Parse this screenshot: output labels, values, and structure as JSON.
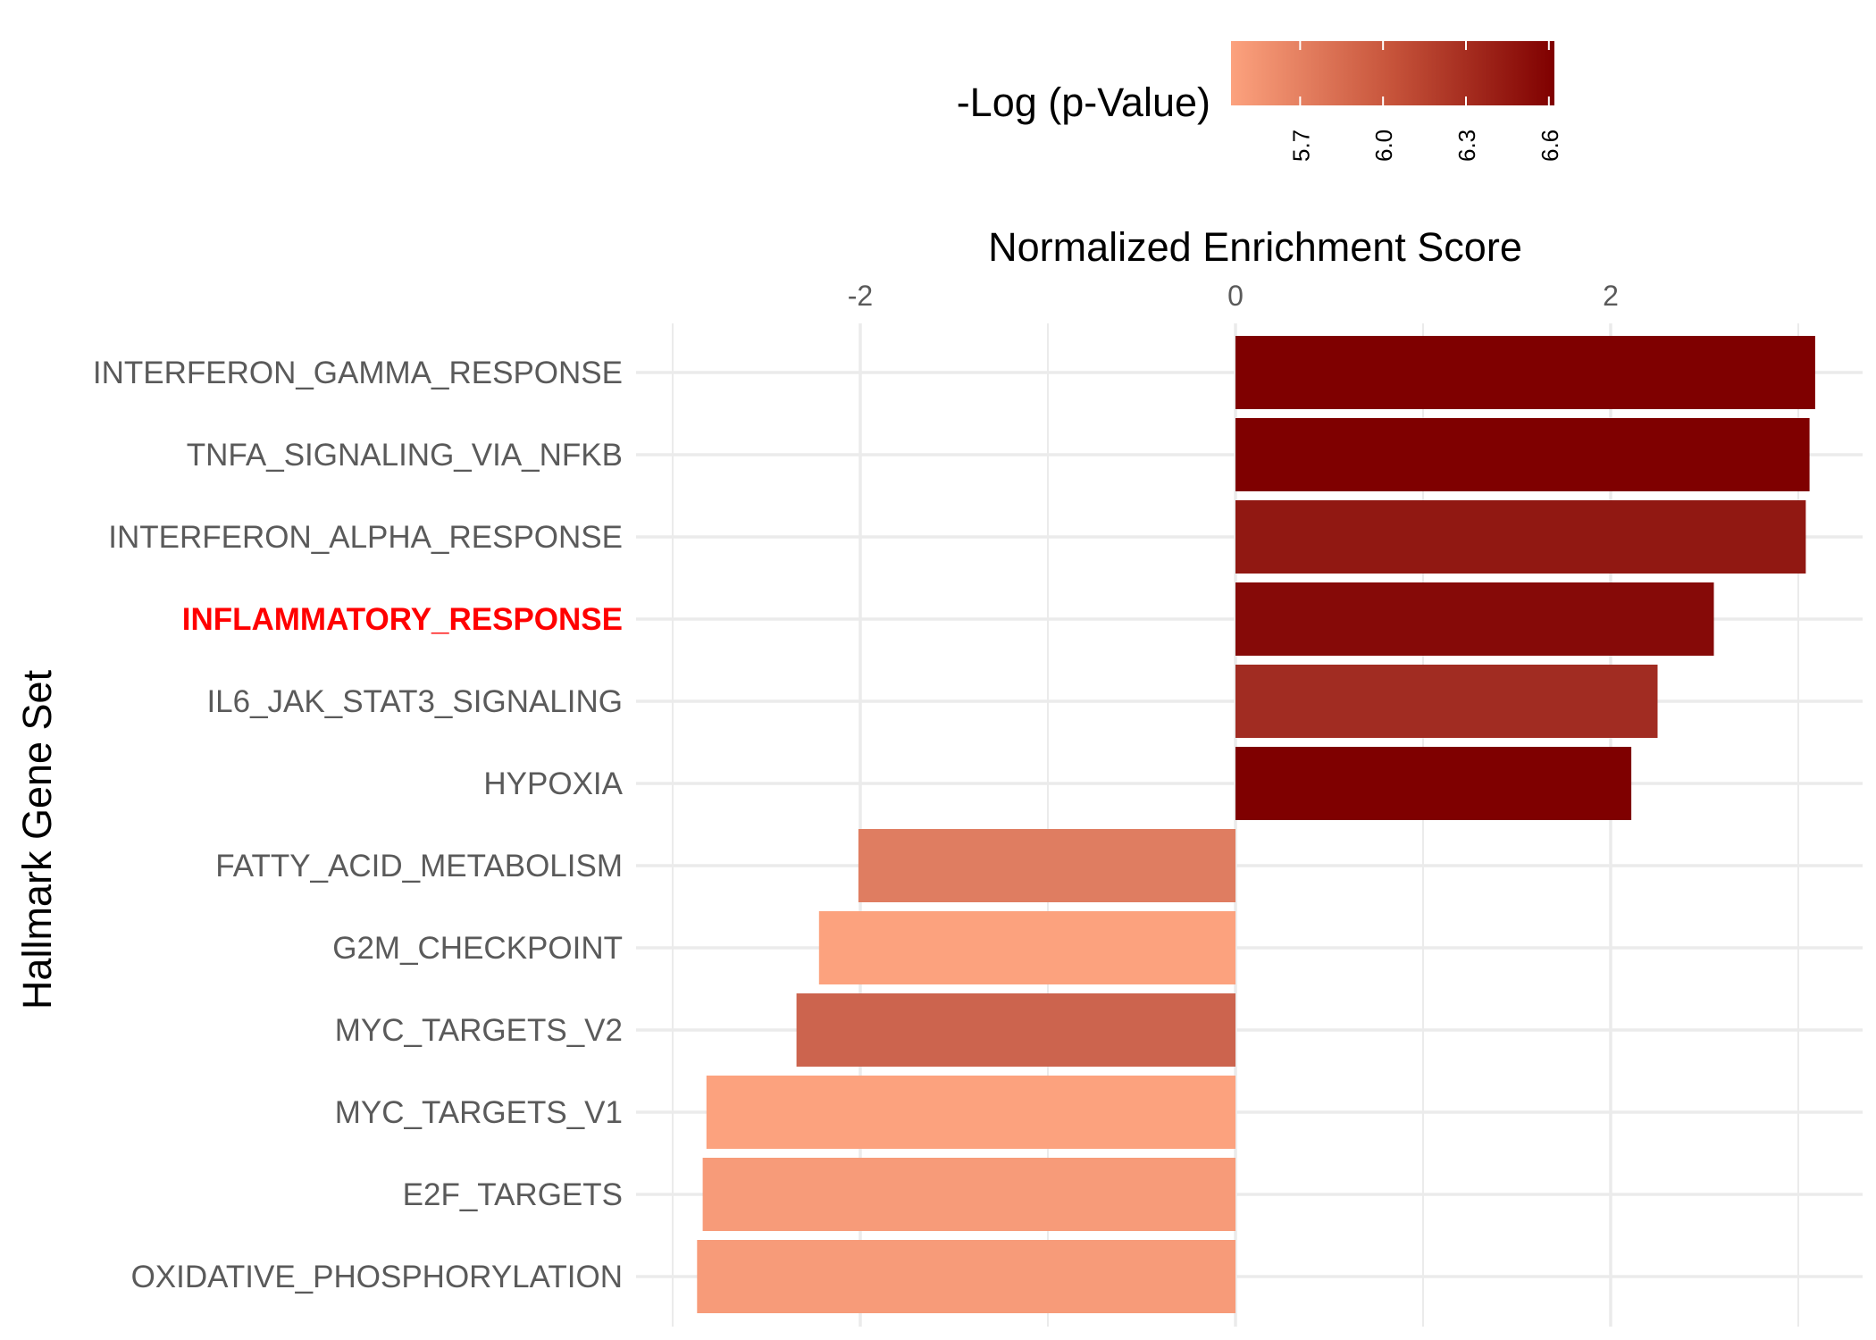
{
  "chart_data": {
    "type": "bar",
    "orientation": "horizontal",
    "xlabel": "Normalized Enrichment Score",
    "ylabel": "Hallmark Gene Set",
    "x_axis_position": "top",
    "x_ticks": [
      "-2",
      "0",
      "2"
    ],
    "xlim": [
      -3.05,
      3.35
    ],
    "grid": true,
    "legend": {
      "title": "-Log (p-Value)",
      "position": "top",
      "ticks": [
        "5.7",
        "6.0",
        "6.3",
        "6.6"
      ],
      "range": [
        5.45,
        6.62
      ],
      "colors": [
        "#FCA27E",
        "#7F0000"
      ]
    },
    "highlight_color": "#FF0000",
    "text_color": "#5A5A5A",
    "grid_color": "#EBEBEB",
    "categories": [
      "INTERFERON_GAMMA_RESPONSE",
      "TNFA_SIGNALING_VIA_NFKB",
      "INTERFERON_ALPHA_RESPONSE",
      "INFLAMMATORY_RESPONSE",
      "IL6_JAK_STAT3_SIGNALING",
      "HYPOXIA",
      "FATTY_ACID_METABOLISM",
      "G2M_CHECKPOINT",
      "MYC_TARGETS_V2",
      "MYC_TARGETS_V1",
      "E2F_TARGETS",
      "OXIDATIVE_PHOSPHORYLATION"
    ],
    "highlighted_categories": [
      "INFLAMMATORY_RESPONSE"
    ],
    "values": [
      3.09,
      3.06,
      3.04,
      2.55,
      2.25,
      2.11,
      -2.01,
      -2.22,
      -2.34,
      -2.82,
      -2.84,
      -2.87
    ],
    "neg_log_p": [
      6.62,
      6.62,
      6.45,
      6.55,
      6.3,
      6.62,
      5.72,
      5.45,
      5.9,
      5.45,
      5.5,
      5.5
    ]
  }
}
